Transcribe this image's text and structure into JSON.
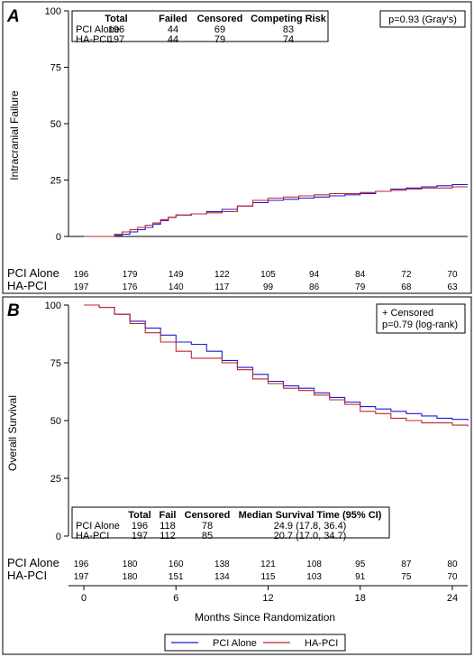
{
  "colors": {
    "pci": "#1a1ad6",
    "hapci": "#c0262b"
  },
  "panels": [
    {
      "letter": "A",
      "ylabel": "Intracranial Failure",
      "yticks": [
        "0",
        "25",
        "50",
        "75",
        "100"
      ],
      "stat_text": "p=0.93 (Gray's)",
      "table_header": [
        "Total",
        "Failed",
        "Censored",
        "Competing Risk"
      ],
      "table_rows": [
        {
          "name": "PCI Alone",
          "cells": [
            "196",
            "44",
            "69",
            "83"
          ]
        },
        {
          "name": "HA-PCI",
          "cells": [
            "197",
            "44",
            "79",
            "74"
          ]
        }
      ],
      "risk_rows": [
        {
          "name": "PCI Alone",
          "values": [
            "196",
            "179",
            "149",
            "122",
            "105",
            "94",
            "84",
            "72",
            "70"
          ]
        },
        {
          "name": "HA-PCI",
          "values": [
            "197",
            "176",
            "140",
            "117",
            "99",
            "86",
            "79",
            "68",
            "63"
          ]
        }
      ]
    },
    {
      "letter": "B",
      "ylabel": "Overall Survival",
      "yticks": [
        "0",
        "25",
        "50",
        "75",
        "100"
      ],
      "legend_censored": "+ Censored",
      "stat_text": "p=0.79 (log-rank)",
      "table_header": [
        "Total",
        "Fail",
        "Censored",
        "Median Survival Time (95% CI)"
      ],
      "table_rows": [
        {
          "name": "PCI Alone",
          "cells": [
            "196",
            "118",
            "78",
            "24.9 (17.8, 36.4)"
          ]
        },
        {
          "name": "HA-PCI",
          "cells": [
            "197",
            "112",
            "85",
            "20.7 (17.0, 34.7)"
          ]
        }
      ],
      "risk_rows": [
        {
          "name": "PCI Alone",
          "values": [
            "196",
            "180",
            "160",
            "138",
            "121",
            "108",
            "95",
            "87",
            "80"
          ]
        },
        {
          "name": "HA-PCI",
          "values": [
            "197",
            "180",
            "151",
            "134",
            "115",
            "103",
            "91",
            "75",
            "70"
          ]
        }
      ]
    }
  ],
  "xaxis": {
    "label": "Months Since Randomization",
    "ticks": [
      "0",
      "6",
      "12",
      "18",
      "24"
    ]
  },
  "legend": [
    "PCI Alone",
    "HA-PCI"
  ],
  "chart_data": [
    {
      "type": "line",
      "ylabel": "Intracranial Failure",
      "ylim": [
        0,
        100
      ],
      "xlim": [
        -1,
        25
      ],
      "series": [
        {
          "name": "PCI Alone",
          "x": [
            0,
            1,
            2,
            2.5,
            3,
            3.5,
            4,
            4.5,
            5,
            5.5,
            6,
            7,
            8,
            9,
            10,
            11,
            12,
            13,
            14,
            15,
            16,
            17,
            18,
            19,
            20,
            21,
            22,
            23,
            24,
            25
          ],
          "y": [
            0,
            0,
            0.5,
            1,
            2,
            3,
            4,
            5.5,
            7,
            8.5,
            9.5,
            10,
            11,
            12,
            13.5,
            15,
            16,
            16.5,
            17,
            17.5,
            18,
            18.5,
            19,
            20,
            21,
            21.5,
            22,
            22.5,
            23,
            23
          ]
        },
        {
          "name": "HA-PCI",
          "x": [
            0,
            1,
            2,
            2.5,
            3,
            3.5,
            4,
            4.5,
            5,
            5.5,
            6,
            7,
            8,
            9,
            10,
            11,
            12,
            13,
            14,
            15,
            16,
            17,
            18,
            19,
            20,
            21,
            22,
            23,
            24,
            25
          ],
          "y": [
            0,
            0,
            1,
            2,
            3,
            4,
            5,
            6,
            7.5,
            8.5,
            9.5,
            10,
            10.5,
            11,
            13.5,
            16,
            17,
            17.5,
            18,
            18.5,
            19,
            19,
            19.5,
            20,
            20.5,
            21,
            21.5,
            21.5,
            22,
            22
          ]
        }
      ]
    },
    {
      "type": "line",
      "ylabel": "Overall Survival",
      "xlabel": "Months Since Randomization",
      "ylim": [
        0,
        100
      ],
      "xlim": [
        -1,
        25
      ],
      "series": [
        {
          "name": "PCI Alone",
          "x": [
            0,
            1,
            2,
            3,
            4,
            5,
            6,
            7,
            8,
            9,
            10,
            11,
            12,
            13,
            14,
            15,
            16,
            17,
            18,
            19,
            20,
            21,
            22,
            23,
            24,
            25
          ],
          "y": [
            100,
            99,
            96,
            93,
            90,
            87,
            84,
            83,
            80,
            76,
            73,
            70,
            67,
            65,
            64,
            62,
            60,
            58,
            56,
            55,
            54,
            53,
            52,
            51,
            50.5,
            50
          ]
        },
        {
          "name": "HA-PCI",
          "x": [
            0,
            1,
            2,
            3,
            4,
            5,
            6,
            7,
            8,
            9,
            10,
            11,
            12,
            13,
            14,
            15,
            16,
            17,
            18,
            19,
            20,
            21,
            22,
            23,
            24,
            25
          ],
          "y": [
            100,
            99,
            96,
            92,
            88,
            84,
            80,
            77,
            77,
            75,
            72,
            68,
            66,
            64,
            63,
            61,
            59,
            57,
            54,
            53,
            51,
            50,
            49,
            49,
            48,
            47.5
          ]
        }
      ]
    }
  ]
}
